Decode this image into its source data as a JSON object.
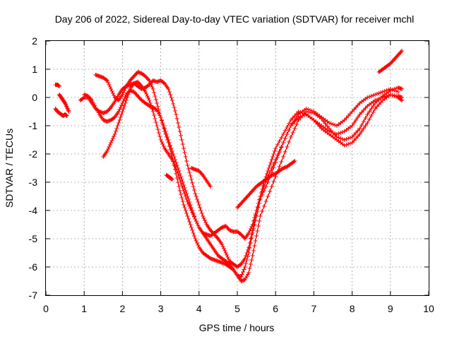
{
  "chart_data": {
    "type": "scatter",
    "title": "Day 206 of 2022, Sidereal Day-to-day VTEC variation (SDTVAR) for receiver mchl",
    "xlabel": "GPS time / hours",
    "ylabel": "SDTVAR / TECUs",
    "xlim": [
      0,
      10
    ],
    "ylim": [
      -7,
      2
    ],
    "x_ticks": [
      "0",
      "1",
      "2",
      "3",
      "4",
      "5",
      "6",
      "7",
      "8",
      "9",
      "10"
    ],
    "y_ticks": [
      "2",
      "1",
      "0",
      "-1",
      "-2",
      "-3",
      "-4",
      "-5",
      "-6",
      "-7"
    ],
    "grid": true,
    "marker": "+",
    "color": "#ff0000",
    "series": [
      {
        "x": [
          0.25,
          0.3,
          0.35
        ],
        "y": [
          0.45,
          0.45,
          0.4
        ]
      },
      {
        "x": [
          0.35,
          0.4,
          0.45,
          0.5,
          0.55,
          0.6
        ],
        "y": [
          0.1,
          0.0,
          -0.1,
          -0.2,
          -0.35,
          -0.5
        ]
      },
      {
        "x": [
          0.25,
          0.3,
          0.35,
          0.4,
          0.45,
          0.5,
          0.55
        ],
        "y": [
          -0.4,
          -0.5,
          -0.55,
          -0.6,
          -0.65,
          -0.6,
          -0.65
        ]
      },
      {
        "x": [
          0.9,
          1.0,
          1.1,
          1.2,
          1.3,
          1.4,
          1.5,
          1.6,
          1.7,
          1.8,
          1.9,
          2.0,
          2.1,
          2.2,
          2.3,
          2.4,
          2.5,
          2.6,
          2.7,
          2.8,
          2.9,
          3.0,
          3.1,
          3.2,
          3.3,
          3.4,
          3.5,
          3.6,
          3.7,
          3.8,
          3.9,
          4.0,
          4.1,
          4.2,
          4.3,
          4.4,
          4.5,
          4.6,
          4.7,
          4.8,
          4.9,
          5.0,
          5.1,
          5.2,
          5.3,
          5.4,
          5.5,
          5.6,
          5.7,
          5.8,
          5.9,
          6.0,
          6.2,
          6.4,
          6.6,
          6.8,
          7.0,
          7.2,
          7.4,
          7.6,
          7.8,
          8.0,
          8.2,
          8.4,
          8.6,
          8.8,
          9.0,
          9.2,
          9.3
        ],
        "y": [
          -0.1,
          0.0,
          0.0,
          -0.2,
          -0.4,
          -0.5,
          -0.55,
          -0.5,
          -0.35,
          -0.15,
          0.1,
          0.3,
          0.4,
          0.45,
          0.5,
          0.55,
          0.4,
          0.2,
          -0.1,
          -0.5,
          -1.0,
          -1.5,
          -1.8,
          -2.0,
          -2.2,
          -2.5,
          -2.9,
          -3.3,
          -3.7,
          -4.0,
          -4.3,
          -4.6,
          -4.8,
          -4.85,
          -4.9,
          -4.8,
          -4.7,
          -4.6,
          -4.55,
          -4.7,
          -4.75,
          -4.75,
          -4.85,
          -5.0,
          -4.8,
          -4.5,
          -4.0,
          -3.5,
          -3.0,
          -2.6,
          -2.2,
          -1.8,
          -1.3,
          -0.8,
          -0.5,
          -0.6,
          -0.8,
          -1.0,
          -1.2,
          -1.3,
          -1.2,
          -1.0,
          -0.6,
          -0.3,
          -0.1,
          0.0,
          0.1,
          0.05,
          0.0
        ]
      },
      {
        "x": [
          1.3,
          1.4,
          1.5,
          1.6,
          1.7,
          1.8,
          1.9,
          2.0,
          2.1,
          2.2,
          2.3,
          2.4,
          2.5,
          2.6,
          2.7,
          2.8,
          2.9,
          3.0,
          3.1,
          3.2,
          3.3,
          3.4,
          3.5,
          3.6,
          3.7,
          3.8,
          3.9,
          4.0,
          4.1,
          4.2,
          4.3,
          4.4,
          4.5,
          4.6,
          4.7,
          4.8,
          4.9,
          5.0,
          5.1,
          5.2,
          5.3,
          5.4,
          5.5,
          5.6,
          5.8,
          6.0,
          6.2,
          6.4,
          6.6,
          6.8,
          7.0,
          7.2,
          7.4,
          7.6,
          7.8,
          8.0,
          8.2,
          8.4,
          8.6,
          8.8,
          9.0,
          9.2
        ],
        "y": [
          0.8,
          0.75,
          0.7,
          0.6,
          0.3,
          0.0,
          -0.1,
          0.1,
          0.4,
          0.6,
          0.75,
          0.9,
          0.85,
          0.75,
          0.6,
          0.3,
          -0.2,
          -0.7,
          -1.2,
          -1.6,
          -2.1,
          -2.7,
          -3.3,
          -3.8,
          -4.2,
          -4.6,
          -5.0,
          -5.3,
          -5.5,
          -5.6,
          -5.7,
          -5.75,
          -5.8,
          -5.85,
          -5.9,
          -6.0,
          -6.1,
          -6.3,
          -6.35,
          -6.0,
          -5.5,
          -4.8,
          -4.2,
          -3.6,
          -3.0,
          -2.3,
          -1.6,
          -1.0,
          -0.6,
          -0.4,
          -0.5,
          -0.7,
          -0.9,
          -1.0,
          -0.8,
          -0.5,
          -0.2,
          0.0,
          0.1,
          0.2,
          0.3,
          0.2
        ]
      },
      {
        "x": [
          1.0,
          1.1,
          1.2,
          1.3,
          1.4,
          1.5,
          1.6,
          1.7,
          1.8,
          1.9,
          2.0,
          2.1,
          2.2,
          2.3,
          2.4,
          2.5,
          2.6,
          2.7,
          2.8,
          2.9,
          3.0,
          3.1,
          3.2,
          3.3,
          3.4,
          3.5,
          3.6,
          3.7,
          3.8,
          3.9,
          4.0,
          4.1,
          4.2,
          4.3,
          4.4,
          4.5,
          4.6,
          4.7,
          4.8,
          4.9,
          5.0,
          5.1,
          5.2,
          5.3,
          5.4,
          5.5,
          5.6,
          5.8,
          6.0,
          6.2,
          6.4,
          6.6,
          6.8,
          7.0,
          7.2,
          7.4,
          7.6,
          7.8,
          8.0,
          8.2,
          8.4,
          8.6,
          8.8,
          9.0,
          9.2,
          9.3
        ],
        "y": [
          0.1,
          0.05,
          -0.1,
          -0.35,
          -0.6,
          -0.8,
          -0.85,
          -0.8,
          -0.7,
          -0.5,
          -0.2,
          0.1,
          0.25,
          0.2,
          0.05,
          -0.1,
          -0.2,
          -0.3,
          -0.35,
          -0.45,
          -0.7,
          -1.1,
          -1.5,
          -1.9,
          -2.3,
          -2.7,
          -3.1,
          -3.5,
          -3.9,
          -4.3,
          -4.6,
          -4.8,
          -5.0,
          -5.2,
          -5.4,
          -5.6,
          -5.7,
          -5.8,
          -5.9,
          -6.1,
          -6.3,
          -6.5,
          -6.45,
          -6.2,
          -5.6,
          -4.9,
          -4.2,
          -3.5,
          -2.8,
          -2.1,
          -1.4,
          -0.8,
          -0.5,
          -0.55,
          -0.75,
          -1.1,
          -1.4,
          -1.5,
          -1.4,
          -1.1,
          -0.6,
          -0.2,
          0.05,
          0.25,
          0.35,
          0.3
        ]
      },
      {
        "x": [
          1.5,
          1.6,
          1.7,
          1.8,
          1.9,
          2.0,
          2.1,
          2.2,
          2.3,
          2.4,
          2.5,
          2.6,
          2.7,
          2.8,
          2.9,
          3.0,
          3.1,
          3.2,
          3.3,
          3.4,
          3.5,
          3.6,
          3.7,
          3.8,
          3.9,
          4.0,
          4.1,
          4.2,
          4.3,
          4.4,
          4.5,
          4.6,
          4.7,
          4.8,
          4.9,
          5.0,
          5.1,
          5.2,
          5.3,
          5.4,
          5.5,
          5.6,
          5.8,
          6.0,
          6.2,
          6.4,
          6.6,
          6.8,
          7.0,
          7.2,
          7.4,
          7.6,
          7.8,
          8.0,
          8.2,
          8.4,
          8.6,
          8.8,
          9.0,
          9.2,
          9.3
        ],
        "y": [
          -2.1,
          -1.9,
          -1.6,
          -1.3,
          -0.9,
          -0.5,
          -0.1,
          0.3,
          0.5,
          0.4,
          0.3,
          0.35,
          0.45,
          0.6,
          0.55,
          0.6,
          0.5,
          0.3,
          -0.1,
          -0.6,
          -1.2,
          -1.8,
          -2.4,
          -2.9,
          -3.4,
          -3.8,
          -4.2,
          -4.5,
          -4.7,
          -4.85,
          -5.0,
          -5.2,
          -5.5,
          -5.8,
          -5.9,
          -6.0,
          -5.9,
          -5.7,
          -5.3,
          -4.7,
          -4.0,
          -3.5,
          -2.8,
          -2.2,
          -1.6,
          -1.0,
          -0.7,
          -0.6,
          -0.8,
          -1.1,
          -1.3,
          -1.5,
          -1.7,
          -1.6,
          -1.3,
          -0.9,
          -0.4,
          -0.1,
          0.1,
          0.0,
          -0.1
        ]
      },
      {
        "x": [
          3.15,
          3.2,
          3.25,
          3.3
        ],
        "y": [
          -2.75,
          -2.8,
          -2.85,
          -2.9
        ]
      },
      {
        "x": [
          3.8,
          3.9,
          4.0,
          4.1,
          4.2,
          4.3
        ],
        "y": [
          -2.5,
          -2.55,
          -2.6,
          -2.75,
          -2.95,
          -3.15
        ]
      },
      {
        "x": [
          5.0,
          5.1,
          5.2,
          5.3,
          5.4,
          5.5,
          5.6,
          5.7,
          5.8,
          5.9,
          6.0,
          6.1,
          6.2,
          6.3,
          6.4,
          6.5
        ],
        "y": [
          -3.9,
          -3.75,
          -3.6,
          -3.45,
          -3.3,
          -3.15,
          -3.05,
          -2.95,
          -2.85,
          -2.75,
          -2.7,
          -2.6,
          -2.5,
          -2.45,
          -2.35,
          -2.25
        ]
      },
      {
        "x": [
          8.7,
          8.8,
          8.9,
          9.0,
          9.1,
          9.2,
          9.3
        ],
        "y": [
          0.9,
          1.0,
          1.1,
          1.2,
          1.35,
          1.5,
          1.65
        ]
      }
    ]
  }
}
